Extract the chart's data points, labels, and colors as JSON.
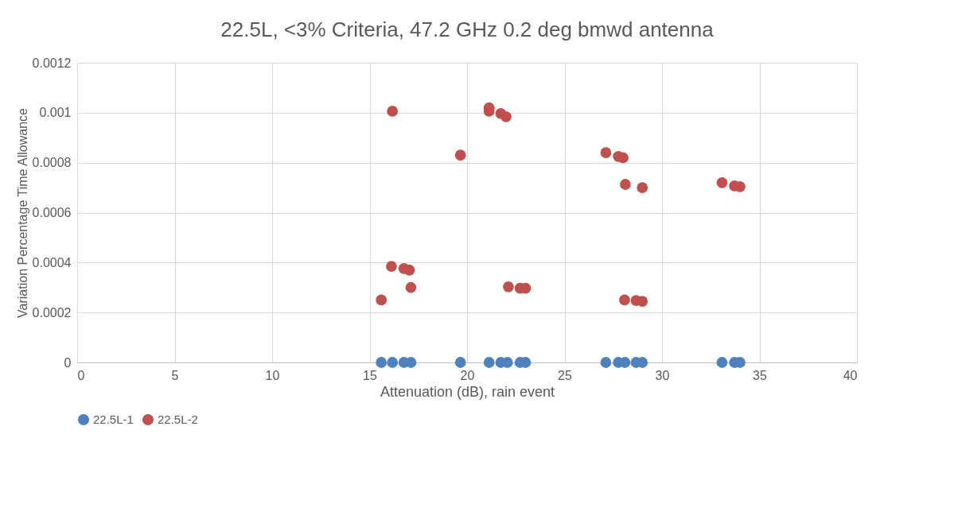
{
  "chart_data": {
    "type": "scatter",
    "title": "22.5L, <3% Criteria, 47.2 GHz 0.2 deg bmwd antenna",
    "xlabel": "Attenuation (dB), rain event",
    "ylabel": "Variation Percentage Time Allowance",
    "xlim": [
      0,
      40
    ],
    "xticks": [
      0,
      5,
      10,
      15,
      20,
      25,
      30,
      35,
      40
    ],
    "ylim": [
      0,
      0.0012
    ],
    "yticks": [
      0,
      0.0002,
      0.0004,
      0.0006,
      0.0008,
      0.001,
      0.0012
    ],
    "grid": true,
    "legend": "bottom",
    "marker": "circle",
    "series": [
      {
        "name": "22.5L-1",
        "color": "#4f81bd",
        "x": [
          15.6,
          16.17,
          16.76,
          17.12,
          19.66,
          21.13,
          21.73,
          22.07,
          22.72,
          23.0,
          27.12,
          27.76,
          28.1,
          28.67,
          28.99,
          33.08,
          33.72,
          34.0
        ],
        "values": [
          0,
          0,
          0,
          0,
          0,
          0,
          0,
          0,
          0,
          0,
          0,
          0,
          0,
          0,
          0,
          0,
          0,
          0
        ]
      },
      {
        "name": "22.5L-2",
        "color": "#c0504d",
        "x": [
          16.17,
          21.13,
          21.13,
          21.73,
          22.0,
          19.66,
          16.12,
          16.76,
          17.04,
          17.12,
          15.6,
          22.12,
          22.72,
          23.0,
          27.12,
          27.76,
          28.0,
          28.12,
          28.99,
          33.08,
          33.72,
          34.0,
          28.08,
          28.67,
          28.99
        ],
        "values": [
          0.001006,
          0.00102,
          0.001006,
          0.000997,
          0.000984,
          0.00083,
          0.000385,
          0.000376,
          0.00037,
          0.0003,
          0.00025,
          0.000303,
          0.000297,
          0.000297,
          0.00084,
          0.000825,
          0.00082,
          0.000713,
          0.0007,
          0.00072,
          0.000707,
          0.000704,
          0.00025,
          0.000248,
          0.000245
        ]
      }
    ]
  }
}
